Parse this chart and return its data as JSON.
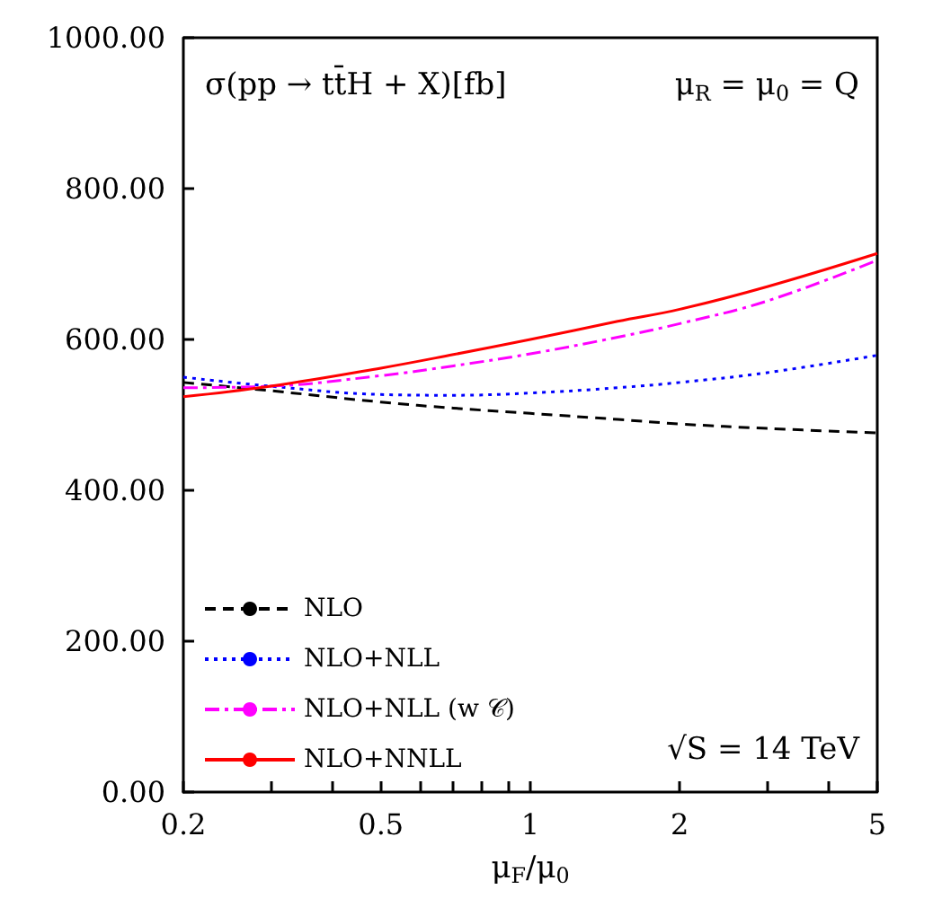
{
  "chart_data": {
    "type": "line",
    "title": "σ(pp → tt̄H + X)[fb]",
    "xlabel": "μ$_{F}$/μ$_{0}$",
    "annotations": [
      "μ$_{R}$ = μ$_{0}$ = Q",
      "√S = 14 TeV"
    ],
    "x": [
      0.2,
      0.3,
      0.5,
      0.7,
      1,
      1.5,
      2,
      3,
      5
    ],
    "series": [
      {
        "name": "NLO",
        "color": "#000000",
        "line_style": "dashed",
        "values": [
          543,
          532,
          517,
          509,
          502,
          494,
          488,
          482,
          476
        ]
      },
      {
        "name": "NLO+NLL",
        "color": "#0000ff",
        "line_style": "dotted",
        "values": [
          550,
          538,
          527,
          526,
          529,
          536,
          543,
          556,
          579
        ]
      },
      {
        "name": "NLO+NLL (w 𝒞)",
        "color": "#ff00ff",
        "line_style": "dashdot",
        "values": [
          536,
          538,
          552,
          565,
          581,
          603,
          621,
          651,
          705
        ]
      },
      {
        "name": "NLO+NNLL",
        "color": "#ff0000",
        "line_style": "solid",
        "values": [
          524,
          538,
          562,
          580,
          600,
          624,
          640,
          670,
          714
        ]
      }
    ],
    "log": "x",
    "xlim": [
      0.2,
      5
    ],
    "xticks": [
      0.2,
      {
        "value": 0.3,
        "label": null
      },
      {
        "value": 0.4,
        "label": null
      },
      0.5,
      {
        "value": 0.6,
        "label": null
      },
      {
        "value": 0.7,
        "label": null
      },
      {
        "value": 0.8,
        "label": null
      },
      {
        "value": 0.9,
        "label": null
      },
      1,
      2,
      {
        "value": 3,
        "label": null
      },
      {
        "value": 4,
        "label": null
      },
      5
    ],
    "ylim": [
      0,
      1000
    ],
    "yticks": [
      {
        "value": 0,
        "label": "0.00"
      },
      {
        "value": 200,
        "label": "200.00"
      },
      {
        "value": 400,
        "label": "400.00"
      },
      {
        "value": 600,
        "label": "600.00"
      },
      {
        "value": 800,
        "label": "800.00"
      },
      {
        "value": 1000,
        "label": "1000.00"
      }
    ],
    "grid": false,
    "legend": "bottom left",
    "marker": "none"
  }
}
